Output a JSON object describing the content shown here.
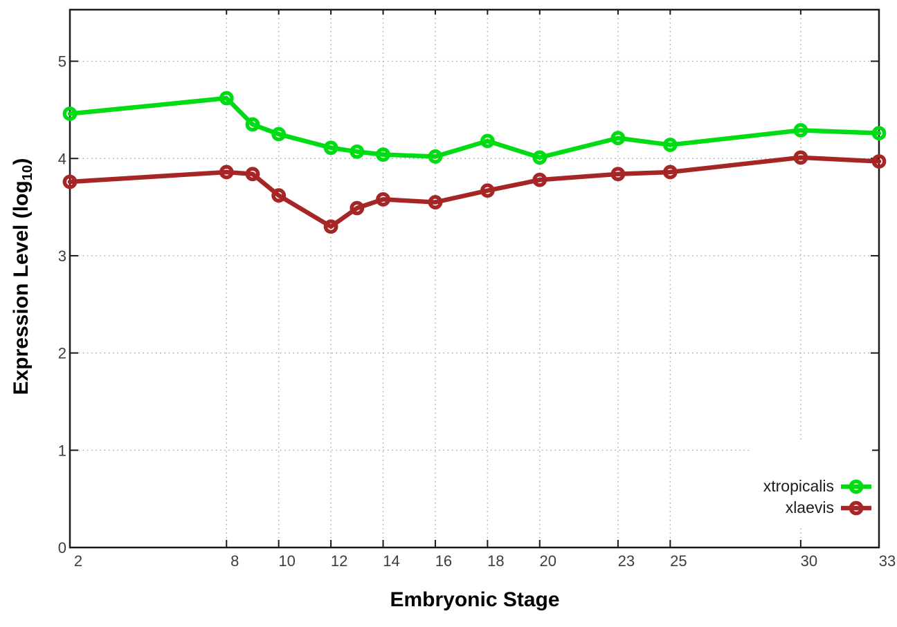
{
  "chart_data": {
    "type": "line",
    "title": "",
    "xlabel": "Embryonic Stage",
    "ylabel": "Expression Level (log10)",
    "ylabel_parts": {
      "prefix": "Expression Level (log",
      "sub": "10",
      "suffix": ")"
    },
    "x": [
      2,
      8,
      9,
      10,
      12,
      13,
      14,
      16,
      18,
      20,
      23,
      25,
      30,
      33
    ],
    "series": [
      {
        "name": "xtropicalis",
        "color": "#00dc14",
        "values": [
          4.46,
          4.62,
          4.35,
          4.25,
          4.11,
          4.07,
          4.04,
          4.02,
          4.18,
          4.01,
          4.21,
          4.14,
          4.29,
          4.26
        ]
      },
      {
        "name": "xlaevis",
        "color": "#a62626",
        "values": [
          3.76,
          3.86,
          3.84,
          3.62,
          3.3,
          3.49,
          3.58,
          3.55,
          3.67,
          3.78,
          3.84,
          3.86,
          4.01,
          3.97
        ]
      }
    ],
    "xticks": [
      2,
      8,
      10,
      12,
      14,
      16,
      18,
      20,
      23,
      25,
      30,
      33
    ],
    "yticks": [
      0,
      1,
      2,
      3,
      4,
      5
    ],
    "xlim": [
      2,
      33
    ],
    "ylim": [
      0,
      5.53
    ],
    "grid": true,
    "legend_position": "bottom-right",
    "marker": "open-circle",
    "style": {
      "axis_color": "#1a1a1a",
      "grid_color": "#a9a9a9",
      "tick_label_color": "#3d3d3d",
      "background": "#ffffff"
    }
  }
}
